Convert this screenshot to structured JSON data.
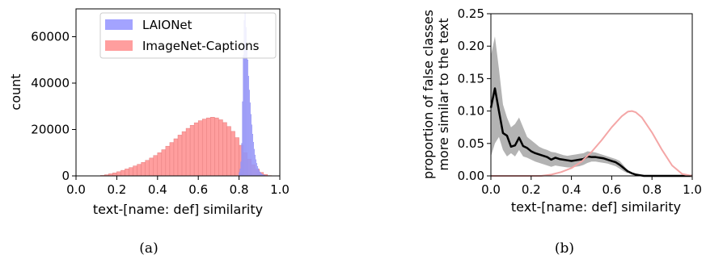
{
  "chart_data": [
    {
      "type": "histogram",
      "caption": "(a)",
      "xlabel": "text-[name: def] similarity",
      "ylabel": "count",
      "xlim": [
        0.0,
        1.0
      ],
      "ylim": [
        0,
        72000
      ],
      "xticks": [
        "0.0",
        "0.2",
        "0.4",
        "0.6",
        "0.8",
        "1.0"
      ],
      "xtick_values": [
        0.0,
        0.2,
        0.4,
        0.6,
        0.8,
        1.0
      ],
      "yticks": [
        "0",
        "20000",
        "40000",
        "60000"
      ],
      "ytick_values": [
        0,
        20000,
        40000,
        60000
      ],
      "legend_position": "top-right",
      "series": [
        {
          "name": "ImageNet-Captions",
          "color": "#ff9e9e",
          "edge_color": "#e57f7f",
          "bin_width": 0.02,
          "bin_starts": [
            0.12,
            0.14,
            0.16,
            0.18,
            0.2,
            0.22,
            0.24,
            0.26,
            0.28,
            0.3,
            0.32,
            0.34,
            0.36,
            0.38,
            0.4,
            0.42,
            0.44,
            0.46,
            0.48,
            0.5,
            0.52,
            0.54,
            0.56,
            0.58,
            0.6,
            0.62,
            0.64,
            0.66,
            0.68,
            0.7,
            0.72,
            0.74,
            0.76,
            0.78,
            0.8,
            0.82,
            0.84,
            0.86,
            0.88,
            0.9,
            0.92,
            0.94
          ],
          "counts": [
            200,
            500,
            900,
            1300,
            1800,
            2400,
            3000,
            3600,
            4300,
            5000,
            5800,
            6700,
            7700,
            8800,
            10000,
            11300,
            12800,
            14400,
            16000,
            17600,
            19100,
            20500,
            21800,
            22900,
            23800,
            24500,
            25000,
            25300,
            25000,
            24200,
            23000,
            21300,
            19200,
            16500,
            13200,
            10000,
            7200,
            4800,
            2900,
            1500,
            600,
            150
          ]
        },
        {
          "name": "LAIONet",
          "color": "#a3a3ff",
          "edge_color": "#8f8ff2",
          "bin_width": 0.004,
          "bin_starts": [
            0.8,
            0.804,
            0.808,
            0.812,
            0.816,
            0.82,
            0.824,
            0.828,
            0.832,
            0.836,
            0.84,
            0.844,
            0.848,
            0.852,
            0.856,
            0.86,
            0.864,
            0.868,
            0.872,
            0.876,
            0.88,
            0.884,
            0.888,
            0.892,
            0.896,
            0.9,
            0.904,
            0.908,
            0.912,
            0.916,
            0.92,
            0.924,
            0.928,
            0.932,
            0.936,
            0.94
          ],
          "counts": [
            1500,
            3000,
            6000,
            14000,
            32000,
            52000,
            67000,
            70000,
            64000,
            57000,
            50000,
            43000,
            37000,
            31500,
            26500,
            22000,
            18000,
            14500,
            11500,
            9000,
            7000,
            5400,
            4100,
            3100,
            2300,
            1700,
            1250,
            900,
            650,
            450,
            300,
            200,
            130,
            80,
            40,
            15
          ]
        }
      ]
    },
    {
      "type": "line",
      "caption": "(b)",
      "xlabel": "text-[name: def] similarity",
      "ylabel_lines": [
        "proportion of false classes",
        "more similar to the text"
      ],
      "xlim": [
        0.0,
        1.0
      ],
      "ylim": [
        0.0,
        0.25
      ],
      "xticks": [
        "0.0",
        "0.2",
        "0.4",
        "0.6",
        "0.8",
        "1.0"
      ],
      "xtick_values": [
        0.0,
        0.2,
        0.4,
        0.6,
        0.8,
        1.0
      ],
      "yticks": [
        "0.00",
        "0.05",
        "0.10",
        "0.15",
        "0.20",
        "0.25"
      ],
      "ytick_values": [
        0.0,
        0.05,
        0.1,
        0.15,
        0.2,
        0.25
      ],
      "band": {
        "color": "#b3b3b3",
        "x": [
          0.0,
          0.02,
          0.04,
          0.06,
          0.08,
          0.1,
          0.12,
          0.14,
          0.16,
          0.18,
          0.2,
          0.22,
          0.24,
          0.26,
          0.28,
          0.3,
          0.32,
          0.34,
          0.36,
          0.38,
          0.4,
          0.42,
          0.44,
          0.46,
          0.48,
          0.5,
          0.52,
          0.54,
          0.56,
          0.58,
          0.6,
          0.62,
          0.64,
          0.66,
          0.68
        ],
        "lower": [
          0.03,
          0.05,
          0.06,
          0.04,
          0.03,
          0.035,
          0.03,
          0.04,
          0.03,
          0.028,
          0.025,
          0.022,
          0.02,
          0.018,
          0.016,
          0.014,
          0.016,
          0.015,
          0.014,
          0.013,
          0.013,
          0.014,
          0.015,
          0.017,
          0.02,
          0.022,
          0.022,
          0.021,
          0.02,
          0.019,
          0.017,
          0.015,
          0.011,
          0.007,
          0.004
        ],
        "upper": [
          0.185,
          0.215,
          0.165,
          0.11,
          0.09,
          0.075,
          0.08,
          0.09,
          0.075,
          0.06,
          0.055,
          0.05,
          0.045,
          0.042,
          0.04,
          0.037,
          0.036,
          0.034,
          0.032,
          0.031,
          0.032,
          0.033,
          0.034,
          0.035,
          0.038,
          0.037,
          0.036,
          0.034,
          0.032,
          0.03,
          0.028,
          0.026,
          0.023,
          0.016,
          0.008
        ]
      },
      "series": [
        {
          "color": "#000000",
          "x": [
            0.0,
            0.02,
            0.04,
            0.06,
            0.08,
            0.1,
            0.12,
            0.14,
            0.16,
            0.18,
            0.2,
            0.22,
            0.24,
            0.26,
            0.28,
            0.3,
            0.32,
            0.34,
            0.36,
            0.38,
            0.4,
            0.42,
            0.44,
            0.46,
            0.48,
            0.5,
            0.52,
            0.54,
            0.56,
            0.58,
            0.6,
            0.62,
            0.64,
            0.66,
            0.68,
            0.7,
            0.72,
            0.74,
            0.76,
            0.78,
            0.8,
            0.85,
            0.9,
            0.95,
            1.0
          ],
          "y": [
            0.105,
            0.135,
            0.1,
            0.066,
            0.062,
            0.045,
            0.047,
            0.059,
            0.046,
            0.043,
            0.038,
            0.035,
            0.033,
            0.031,
            0.029,
            0.025,
            0.028,
            0.026,
            0.025,
            0.024,
            0.023,
            0.024,
            0.025,
            0.026,
            0.03,
            0.029,
            0.029,
            0.028,
            0.027,
            0.025,
            0.023,
            0.021,
            0.017,
            0.012,
            0.007,
            0.004,
            0.002,
            0.001,
            0.0,
            0.0,
            0.0,
            0.0,
            0.0,
            0.0,
            0.0
          ]
        },
        {
          "color": "#f4a6a6",
          "x": [
            0.0,
            0.1,
            0.2,
            0.25,
            0.3,
            0.35,
            0.4,
            0.45,
            0.5,
            0.55,
            0.6,
            0.65,
            0.68,
            0.7,
            0.72,
            0.75,
            0.8,
            0.85,
            0.9,
            0.95,
            1.0
          ],
          "y": [
            0.0,
            0.0,
            0.0,
            0.0,
            0.002,
            0.006,
            0.012,
            0.022,
            0.037,
            0.055,
            0.075,
            0.092,
            0.099,
            0.1,
            0.098,
            0.09,
            0.067,
            0.04,
            0.016,
            0.003,
            0.0
          ]
        }
      ]
    }
  ]
}
